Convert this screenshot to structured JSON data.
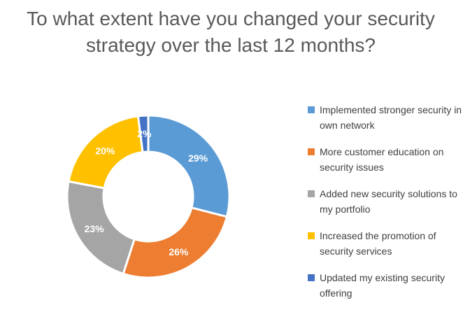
{
  "chart_data": {
    "type": "pie",
    "subtype": "donut",
    "title": "To what extent have you changed your security strategy over the last 12 months?",
    "categories": [
      "Implemented stronger security in own network",
      "More customer education on security issues",
      "Added new security solutions to my portfolio",
      "Increased the promotion of security services",
      "Updated my existing security offering"
    ],
    "values": [
      29,
      26,
      23,
      20,
      2
    ],
    "labels": [
      "29%",
      "26%",
      "23%",
      "20%",
      "2%"
    ],
    "colors": [
      "#5b9bd5",
      "#ed7d31",
      "#a5a5a5",
      "#ffc000",
      "#4472c4"
    ],
    "legend_position": "right"
  }
}
